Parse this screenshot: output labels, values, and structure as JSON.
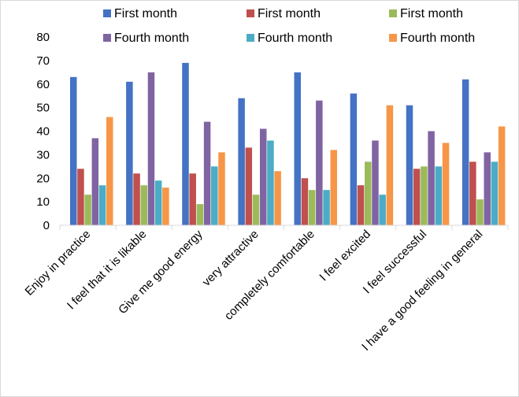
{
  "chart_data": {
    "type": "bar",
    "title": "",
    "xlabel": "",
    "ylabel": "",
    "ylim": [
      0,
      80
    ],
    "yticks": [
      0,
      10,
      20,
      30,
      40,
      50,
      60,
      70,
      80
    ],
    "grid": false,
    "legend_position": "top",
    "categories": [
      "Enjoy in practice",
      "I feel that it is likable",
      "Give me good energy",
      "very attractive",
      "completely comfortable",
      "I feel excited",
      "I feel successful",
      "I have a good feeling in general"
    ],
    "series": [
      {
        "name": "First month",
        "color": "#4472C4",
        "values": [
          63,
          61,
          69,
          54,
          65,
          56,
          51,
          62
        ]
      },
      {
        "name": "First month",
        "color": "#C0504D",
        "values": [
          24,
          22,
          22,
          33,
          20,
          17,
          24,
          27
        ]
      },
      {
        "name": "First month",
        "color": "#9BBB59",
        "values": [
          13,
          17,
          9,
          13,
          15,
          27,
          25,
          11
        ]
      },
      {
        "name": "Fourth month",
        "color": "#8064A2",
        "values": [
          37,
          65,
          44,
          41,
          53,
          36,
          40,
          31
        ]
      },
      {
        "name": "Fourth month",
        "color": "#4BACC6",
        "values": [
          17,
          19,
          25,
          36,
          15,
          13,
          25,
          27
        ]
      },
      {
        "name": "Fourth month",
        "color": "#F79646",
        "values": [
          46,
          16,
          31,
          23,
          32,
          51,
          35,
          42
        ]
      }
    ]
  }
}
